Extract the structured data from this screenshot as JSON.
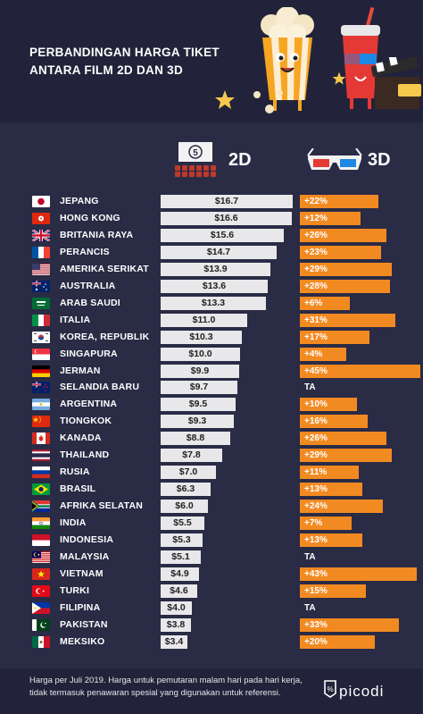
{
  "title_lines": [
    "PERBANDINGAN HARGA TIKET",
    "ANTARA FILM 2D DAN 3D"
  ],
  "col_2d": "2D",
  "col_3d": "3D",
  "cinema_sign": "5",
  "footer_lines": [
    "Harga per Juli 2019. Harga untuk pemutaran malam hari pada hari kerja,",
    "tidak termasuk penawaran spesial yang digunakan untuk referensi."
  ],
  "brand": "picodi",
  "colors": {
    "bar_2d": "#e8e8ea",
    "bar_3d": "#f28a22",
    "background": "#2a2b45"
  },
  "chart_data": {
    "type": "bar",
    "xmax": 17.5,
    "categories": [
      "JEPANG",
      "HONG KONG",
      "BRITANIA RAYA",
      "PERANCIS",
      "AMERIKA SERIKAT",
      "AUSTRALIA",
      "ARAB SAUDI",
      "ITALIA",
      "KOREA, REPUBLIK",
      "SINGAPURA",
      "JERMAN",
      "SELANDIA BARU",
      "ARGENTINA",
      "TIONGKOK",
      "KANADA",
      "THAILAND",
      "RUSIA",
      "BRASIL",
      "AFRIKA SELATAN",
      "INDIA",
      "INDONESIA",
      "MALAYSIA",
      "VIETNAM",
      "TURKI",
      "FILIPINA",
      "PAKISTAN",
      "MEKSIKO"
    ],
    "series": [
      {
        "name": "2D",
        "values": [
          16.7,
          16.6,
          15.6,
          14.7,
          13.9,
          13.6,
          13.3,
          11.0,
          10.3,
          10.0,
          9.9,
          9.7,
          9.5,
          9.3,
          8.8,
          7.8,
          7.0,
          6.3,
          6.0,
          5.5,
          5.3,
          5.1,
          4.9,
          4.6,
          4.0,
          3.8,
          3.4
        ],
        "labels": [
          "$16.7",
          "$16.6",
          "$15.6",
          "$14.7",
          "$13.9",
          "$13.6",
          "$13.3",
          "$11.0",
          "$10.3",
          "$10.0",
          "$9.9",
          "$9.7",
          "$9.5",
          "$9.3",
          "$8.8",
          "$7.8",
          "$7.0",
          "$6.3",
          "$6.0",
          "$5.5",
          "$5.3",
          "$5.1",
          "$4.9",
          "$4.6",
          "$4.0",
          "$3.8",
          "$3.4"
        ]
      },
      {
        "name": "3D",
        "values": [
          22,
          12,
          26,
          23,
          29,
          28,
          6,
          31,
          17,
          4,
          45,
          null,
          10,
          16,
          26,
          29,
          11,
          13,
          24,
          7,
          13,
          null,
          43,
          15,
          null,
          33,
          20
        ],
        "labels": [
          "+22%",
          "+12%",
          "+26%",
          "+23%",
          "+29%",
          "+28%",
          "+6%",
          "+31%",
          "+17%",
          "+4%",
          "+45%",
          "TA",
          "+10%",
          "+16%",
          "+26%",
          "+29%",
          "+11%",
          "+13%",
          "+24%",
          "+7%",
          "+13%",
          "TA",
          "+43%",
          "+15%",
          "TA",
          "+33%",
          "+20%"
        ]
      }
    ]
  },
  "flags": [
    "jp",
    "hk",
    "gb",
    "fr",
    "us",
    "au",
    "sa",
    "it",
    "kr",
    "sg",
    "de",
    "nz",
    "ar",
    "cn",
    "ca",
    "th",
    "ru",
    "br",
    "za",
    "in",
    "id",
    "my",
    "vn",
    "tr",
    "ph",
    "pk",
    "mx"
  ]
}
